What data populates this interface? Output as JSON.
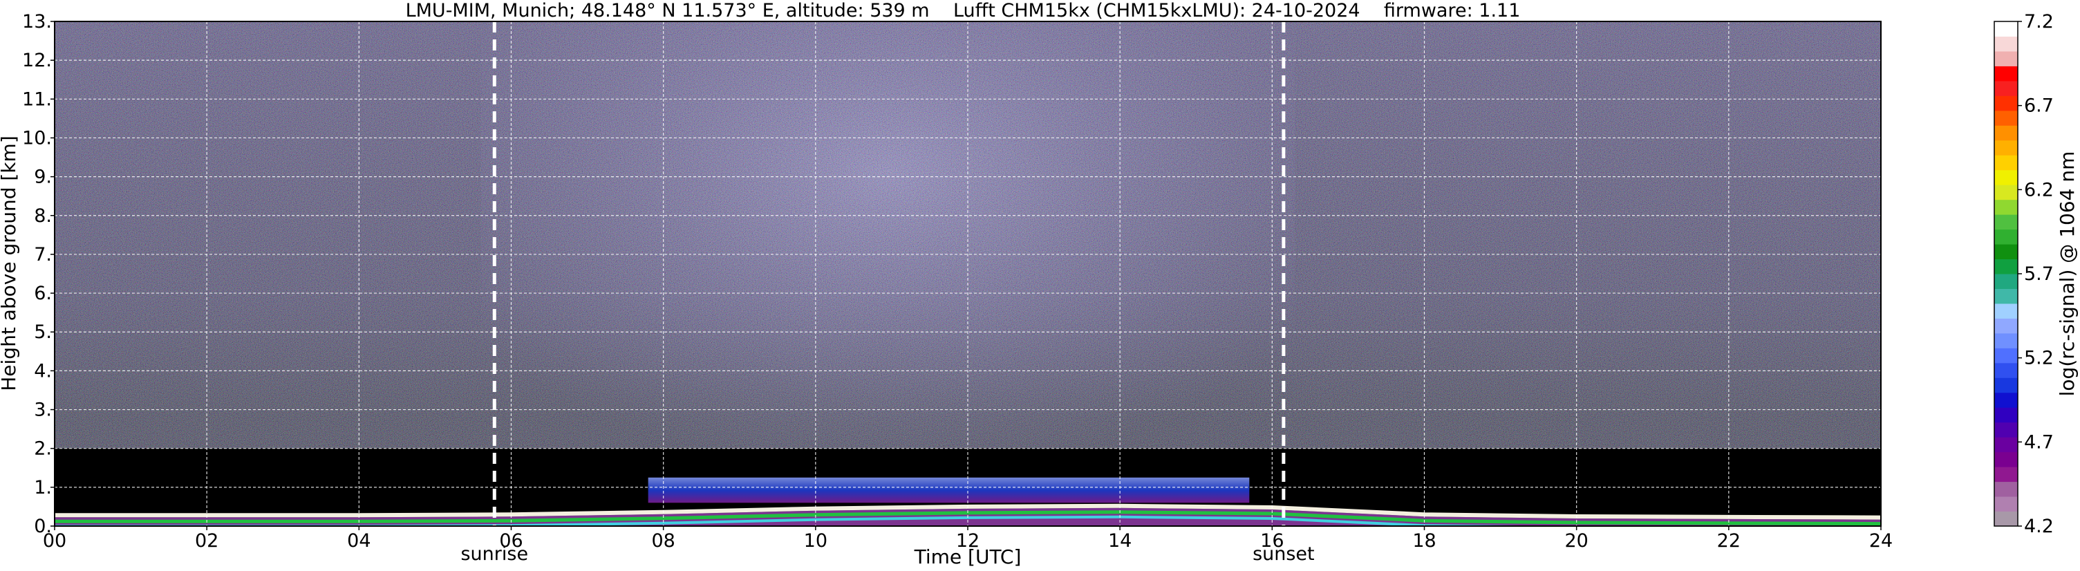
{
  "chart_data": {
    "type": "heatmap",
    "title": "LMU-MIM, Munich; 48.148° N 11.573° E, altitude: 539 m    Lufft CHM15kx (CHM15kxLMU): 24-10-2024    firmware: 1.11",
    "xlabel": "Time [UTC]",
    "ylabel": "Height above ground [km]",
    "colorbar_label": "log(rc-signal) @ 1064 nm",
    "xlim": [
      0,
      24
    ],
    "ylim": [
      0,
      13
    ],
    "x_ticks": [
      0,
      2,
      4,
      6,
      8,
      10,
      12,
      14,
      16,
      18,
      20,
      22,
      24
    ],
    "x_tick_labels": [
      "00",
      "02",
      "04",
      "06",
      "08",
      "10",
      "12",
      "14",
      "16",
      "18",
      "20",
      "22",
      "24"
    ],
    "y_ticks": [
      0,
      1,
      2,
      3,
      4,
      5,
      6,
      7,
      8,
      9,
      10,
      11,
      12,
      13
    ],
    "y_tick_labels": [
      "0.",
      "1.",
      "2.",
      "3.",
      "4.",
      "5.",
      "6.",
      "7.",
      "8.",
      "9.",
      "10.",
      "11.",
      "12.",
      "13."
    ],
    "grid": true,
    "colorbar": {
      "range": [
        4.2,
        7.2
      ],
      "tick_values": [
        4.2,
        4.7,
        5.2,
        5.7,
        6.2,
        6.7,
        7.2
      ],
      "tick_labels": [
        "4.2",
        "4.7",
        "5.2",
        "5.7",
        "6.2",
        "6.7",
        "7.2"
      ],
      "colors": [
        "#a898a8",
        "#b080b0",
        "#a060a0",
        "#901890",
        "#7a0090",
        "#6a00a0",
        "#5000b0",
        "#3000c0",
        "#1010d0",
        "#1838e0",
        "#3050f0",
        "#5070ff",
        "#7090ff",
        "#90a8ff",
        "#a0d0ff",
        "#40b8a8",
        "#20a880",
        "#10a040",
        "#109010",
        "#30b030",
        "#50c040",
        "#90d830",
        "#d8e820",
        "#f0f000",
        "#ffd000",
        "#ffb000",
        "#ff9000",
        "#ff6000",
        "#ff3000",
        "#f82020",
        "#ff0000",
        "#f0b0b0",
        "#f8d8d8",
        "#ffffff"
      ]
    },
    "annotations": [
      {
        "label": "sunrise",
        "x": 5.78
      },
      {
        "label": "sunset",
        "x": 16.15
      }
    ],
    "boundary_layer_height_km": [
      {
        "x": 0,
        "y": 0.28
      },
      {
        "x": 4,
        "y": 0.28
      },
      {
        "x": 6,
        "y": 0.3
      },
      {
        "x": 8,
        "y": 0.36
      },
      {
        "x": 10,
        "y": 0.45
      },
      {
        "x": 12,
        "y": 0.5
      },
      {
        "x": 14,
        "y": 0.52
      },
      {
        "x": 16,
        "y": 0.48
      },
      {
        "x": 18,
        "y": 0.3
      },
      {
        "x": 20,
        "y": 0.25
      },
      {
        "x": 24,
        "y": 0.22
      }
    ],
    "aerosol_layer_km": {
      "x_start": 7.8,
      "x_end": 15.7,
      "y_bottom": 0.6,
      "y_top": 1.25
    }
  }
}
